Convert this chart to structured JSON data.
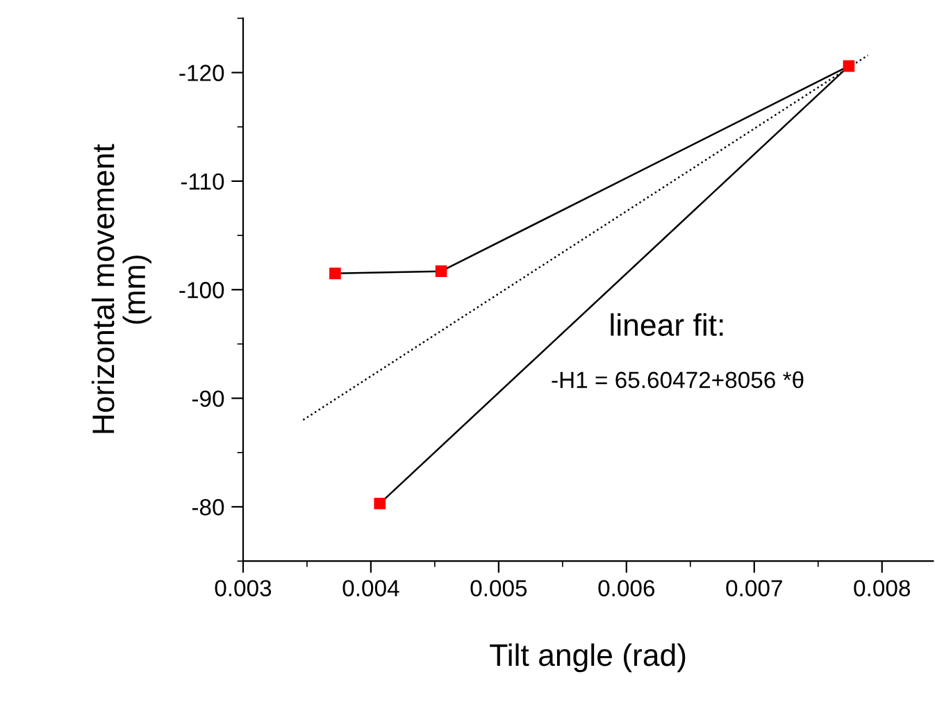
{
  "chart_data": {
    "type": "line",
    "xlabel": "Tilt angle (rad)",
    "ylabel": "Horizontal movement\n(mm)",
    "xlim": [
      0.003,
      0.0084
    ],
    "xticks": [
      0.003,
      0.004,
      0.005,
      0.006,
      0.007,
      0.008
    ],
    "ylim": [
      -75,
      -125
    ],
    "yticks": [
      -80,
      -90,
      -100,
      -110,
      -120
    ],
    "grid": false,
    "series": [
      {
        "x": [
          0.00372,
          0.00455,
          0.00774,
          0.00407
        ],
        "values": [
          -101.5,
          -101.7,
          -120.6,
          -80.3
        ],
        "color": "#000000",
        "marker": "square",
        "line_style": "solid"
      },
      {
        "x": [
          0.00347,
          0.00789
        ],
        "values": [
          -88.0,
          -121.6
        ],
        "color": "#000000",
        "marker": "none",
        "line_style": "dotted"
      }
    ],
    "annotations": [
      "linear fit:",
      "-H1 = 65.60472+8056 *θ"
    ]
  }
}
